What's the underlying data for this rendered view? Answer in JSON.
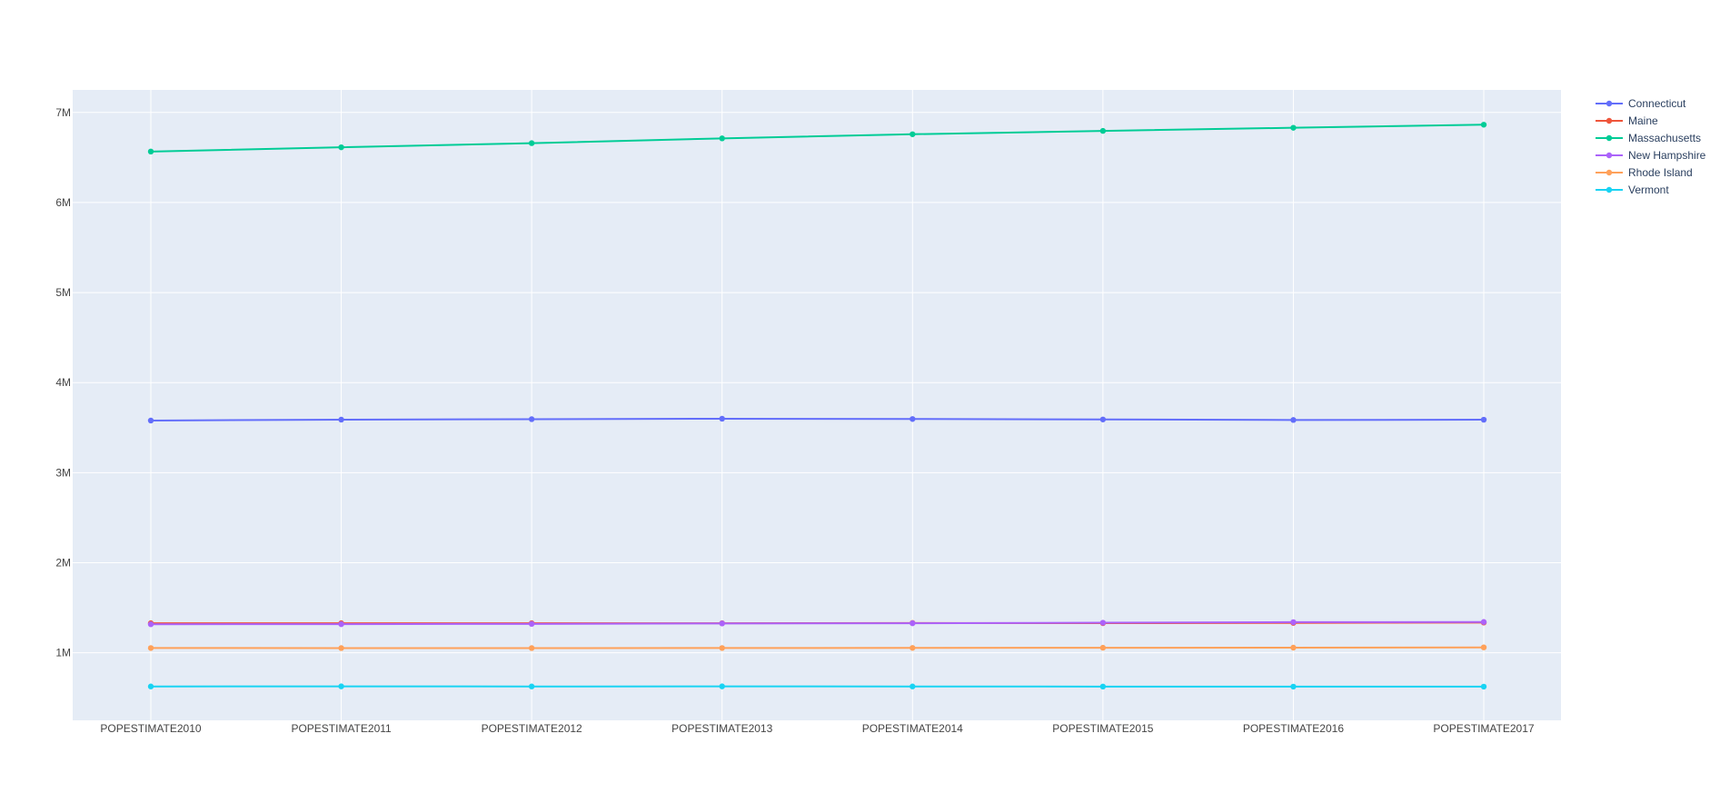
{
  "chart_data": {
    "type": "line",
    "title": "",
    "xlabel": "",
    "ylabel": "",
    "categories": [
      "POPESTIMATE2010",
      "POPESTIMATE2011",
      "POPESTIMATE2012",
      "POPESTIMATE2013",
      "POPESTIMATE2014",
      "POPESTIMATE2015",
      "POPESTIMATE2016",
      "POPESTIMATE2017"
    ],
    "ylim": [
      250000,
      7250000
    ],
    "y_ticks": [
      {
        "value": 1000000,
        "label": "1M"
      },
      {
        "value": 2000000,
        "label": "2M"
      },
      {
        "value": 3000000,
        "label": "3M"
      },
      {
        "value": 4000000,
        "label": "4M"
      },
      {
        "value": 5000000,
        "label": "5M"
      },
      {
        "value": 6000000,
        "label": "6M"
      },
      {
        "value": 7000000,
        "label": "7M"
      }
    ],
    "grid": true,
    "legend_position": "top-right",
    "plot_background": "#e5ecf6",
    "series": [
      {
        "name": "Connecticut",
        "color": "#636efa",
        "values": [
          3579000,
          3589000,
          3594000,
          3599000,
          3596000,
          3591000,
          3585000,
          3588000
        ]
      },
      {
        "name": "Maine",
        "color": "#ef553b",
        "values": [
          1328000,
          1328000,
          1328000,
          1328000,
          1331000,
          1329000,
          1332000,
          1336000
        ]
      },
      {
        "name": "Massachusetts",
        "color": "#00cc96",
        "values": [
          6566000,
          6613000,
          6659000,
          6712000,
          6758000,
          6795000,
          6830000,
          6864000
        ]
      },
      {
        "name": "New Hampshire",
        "color": "#ab63fa",
        "values": [
          1317000,
          1318000,
          1321000,
          1326000,
          1328000,
          1334000,
          1340000,
          1342000
        ]
      },
      {
        "name": "Rhode Island",
        "color": "#ffa15a",
        "values": [
          1053000,
          1052000,
          1052000,
          1053000,
          1054000,
          1056000,
          1057000,
          1060000
        ]
      },
      {
        "name": "Vermont",
        "color": "#19d3f3",
        "values": [
          626000,
          627000,
          626000,
          627000,
          626000,
          625000,
          624000,
          624000
        ]
      }
    ]
  }
}
